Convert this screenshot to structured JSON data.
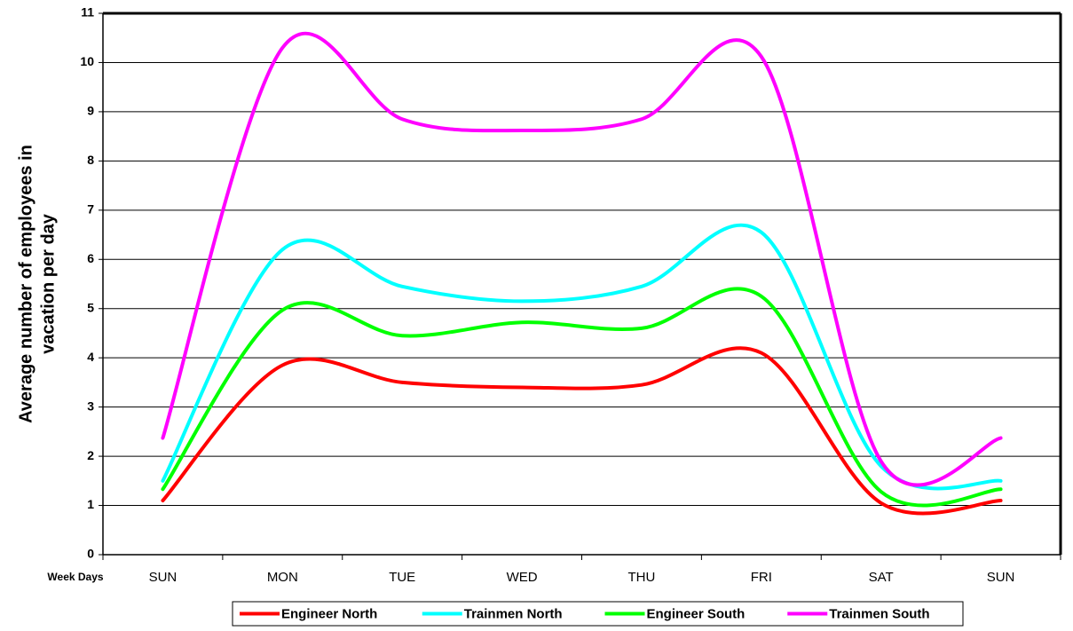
{
  "chart_data": {
    "type": "line",
    "x_label": "Week Days",
    "y_label": [
      "Average number of employees in",
      "vacation per day"
    ],
    "categories": [
      "SUN",
      "MON",
      "TUE",
      "WED",
      "THU",
      "FRI",
      "SAT",
      "SUN"
    ],
    "series": [
      {
        "name": "Engineer North",
        "color": "#ff0000",
        "values": [
          1.1,
          3.85,
          3.5,
          3.4,
          3.45,
          4.1,
          1.05,
          1.1
        ]
      },
      {
        "name": "Trainmen North",
        "color": "#00ffff",
        "values": [
          1.5,
          6.2,
          5.45,
          5.15,
          5.45,
          6.55,
          1.8,
          1.5
        ]
      },
      {
        "name": "Engineer South",
        "color": "#00ff00",
        "values": [
          1.33,
          4.97,
          4.45,
          4.72,
          4.6,
          5.25,
          1.28,
          1.33
        ]
      },
      {
        "name": "Trainmen South",
        "color": "#ff00ff",
        "values": [
          2.37,
          10.3,
          8.85,
          8.62,
          8.85,
          10.12,
          1.9,
          2.37
        ]
      }
    ],
    "ylim": [
      0,
      11
    ],
    "yticks": [
      0,
      1,
      2,
      3,
      4,
      5,
      6,
      7,
      8,
      9,
      10,
      11
    ],
    "grid": true,
    "smooth": true,
    "legend": "bottom"
  }
}
